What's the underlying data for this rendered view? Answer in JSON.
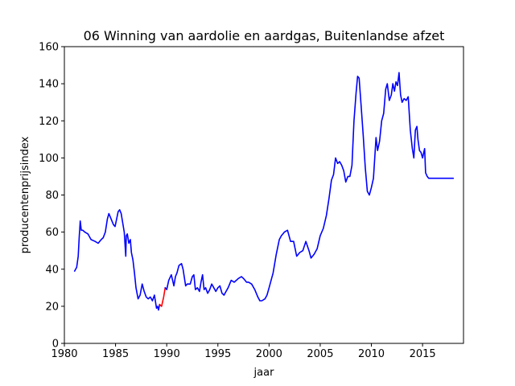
{
  "chart_data": {
    "type": "line",
    "title": "06 Winning van aardolie en aardgas, Buitenlandse afzet",
    "xlabel": "jaar",
    "ylabel": "producentenprijsindex",
    "xlim": [
      1980,
      2019
    ],
    "ylim": [
      0,
      160
    ],
    "xticks": [
      1980,
      1985,
      1990,
      1995,
      2000,
      2005,
      2010,
      2015
    ],
    "yticks": [
      0,
      20,
      40,
      60,
      80,
      100,
      120,
      140,
      160
    ],
    "grid": false,
    "legend": "none",
    "series": [
      {
        "color": "#0000ff",
        "x": [
          1981.0,
          1981.2,
          1981.35,
          1981.45,
          1981.55,
          1981.65,
          1981.8,
          1982.0,
          1982.3,
          1982.6,
          1983.0,
          1983.3,
          1983.6,
          1983.8,
          1984.0,
          1984.2,
          1984.35,
          1984.5,
          1984.65,
          1984.8,
          1984.95,
          1985.1,
          1985.25,
          1985.4,
          1985.55,
          1985.7,
          1985.85,
          1986.0,
          1986.05,
          1986.15,
          1986.3,
          1986.45,
          1986.55,
          1986.7,
          1986.85,
          1987.0,
          1987.2,
          1987.4,
          1987.6,
          1987.8,
          1988.0,
          1988.2,
          1988.4,
          1988.6,
          1988.8,
          1989.0,
          1989.1,
          1989.2,
          1989.3
        ],
        "y": [
          39,
          41,
          47,
          57,
          66,
          61,
          61,
          60,
          59,
          56,
          55,
          54,
          56,
          57,
          60,
          67,
          70,
          68,
          66,
          64,
          63,
          67,
          71,
          72,
          70,
          65,
          60,
          47,
          58,
          59,
          54,
          56,
          49,
          45,
          38,
          30,
          24,
          26,
          32,
          28,
          25,
          24,
          25,
          23,
          26,
          19,
          20,
          18,
          21
        ]
      },
      {
        "color": "#ff0000",
        "x": [
          1989.3,
          1989.5,
          1989.7,
          1989.85
        ],
        "y": [
          21,
          20,
          25,
          30
        ]
      },
      {
        "color": "#0000ff",
        "x": [
          1989.85,
          1990.0,
          1990.2,
          1990.45,
          1990.7,
          1990.85,
          1991.0,
          1991.2,
          1991.45,
          1991.6,
          1991.85,
          1992.0,
          1992.3,
          1992.5,
          1992.65,
          1992.8,
          1993.0,
          1993.2,
          1993.35,
          1993.5,
          1993.65,
          1993.8,
          1994.0,
          1994.2,
          1994.4,
          1994.6,
          1994.8,
          1995.0,
          1995.2,
          1995.4,
          1995.6,
          1995.8,
          1996.0,
          1996.3,
          1996.6,
          1997.0,
          1997.3,
          1997.5,
          1997.8,
          1998.0,
          1998.3,
          1998.6,
          1998.9,
          1999.1,
          1999.3,
          1999.6,
          1999.8,
          2000.0,
          2000.2,
          2000.4,
          2000.7,
          2001.0,
          2001.2,
          2001.5,
          2001.8,
          2002.1,
          2002.4,
          2002.7,
          2003.0,
          2003.3,
          2003.6,
          2003.9,
          2004.1,
          2004.4,
          2004.7,
          2005.0,
          2005.3,
          2005.6,
          2005.85,
          2006.1,
          2006.3,
          2006.5,
          2006.7,
          2006.9,
          2007.1,
          2007.3,
          2007.5,
          2007.7,
          2007.9,
          2008.1,
          2008.3,
          2008.5,
          2008.65,
          2008.8,
          2009.0,
          2009.2,
          2009.4,
          2009.6,
          2009.8,
          2010.0,
          2010.2,
          2010.45,
          2010.6,
          2010.8,
          2011.0,
          2011.2,
          2011.4,
          2011.55,
          2011.75,
          2011.95,
          2012.1,
          2012.25,
          2012.4,
          2012.55,
          2012.7,
          2012.85,
          2013.0,
          2013.2,
          2013.4,
          2013.6,
          2013.8,
          2014.0,
          2014.15,
          2014.3,
          2014.45,
          2014.55,
          2014.7,
          2014.85,
          2015.0,
          2015.2,
          2015.3,
          2015.45,
          2015.6,
          2015.8,
          2015.95,
          2016.1,
          2016.3,
          2016.6,
          2017.0,
          2017.5,
          2018.0
        ],
        "y": [
          30,
          29,
          34,
          37,
          31,
          36,
          38,
          42,
          43,
          40,
          31,
          32,
          32,
          36,
          37,
          29,
          30,
          28,
          33,
          37,
          29,
          30,
          27,
          29,
          32,
          30,
          28,
          30,
          31,
          27,
          26,
          28,
          30,
          34,
          33,
          35,
          36,
          35,
          33,
          33,
          32,
          29,
          25,
          23,
          23,
          24,
          26,
          30,
          34,
          38,
          48,
          56,
          58,
          60,
          61,
          55,
          55,
          47,
          49,
          50,
          55,
          50,
          46,
          48,
          51,
          58,
          62,
          69,
          78,
          88,
          91,
          100,
          97,
          98,
          96,
          93,
          87,
          90,
          90,
          96,
          120,
          135,
          144,
          143,
          128,
          112,
          95,
          82,
          80,
          84,
          89,
          111,
          104,
          109,
          120,
          124,
          137,
          140,
          131,
          134,
          140,
          136,
          141,
          139,
          146,
          134,
          130,
          132,
          131,
          133,
          115,
          105,
          100,
          115,
          117,
          110,
          104,
          103,
          100,
          105,
          92,
          90,
          89,
          89,
          89,
          89,
          89,
          89,
          89,
          89,
          89
        ]
      }
    ]
  }
}
